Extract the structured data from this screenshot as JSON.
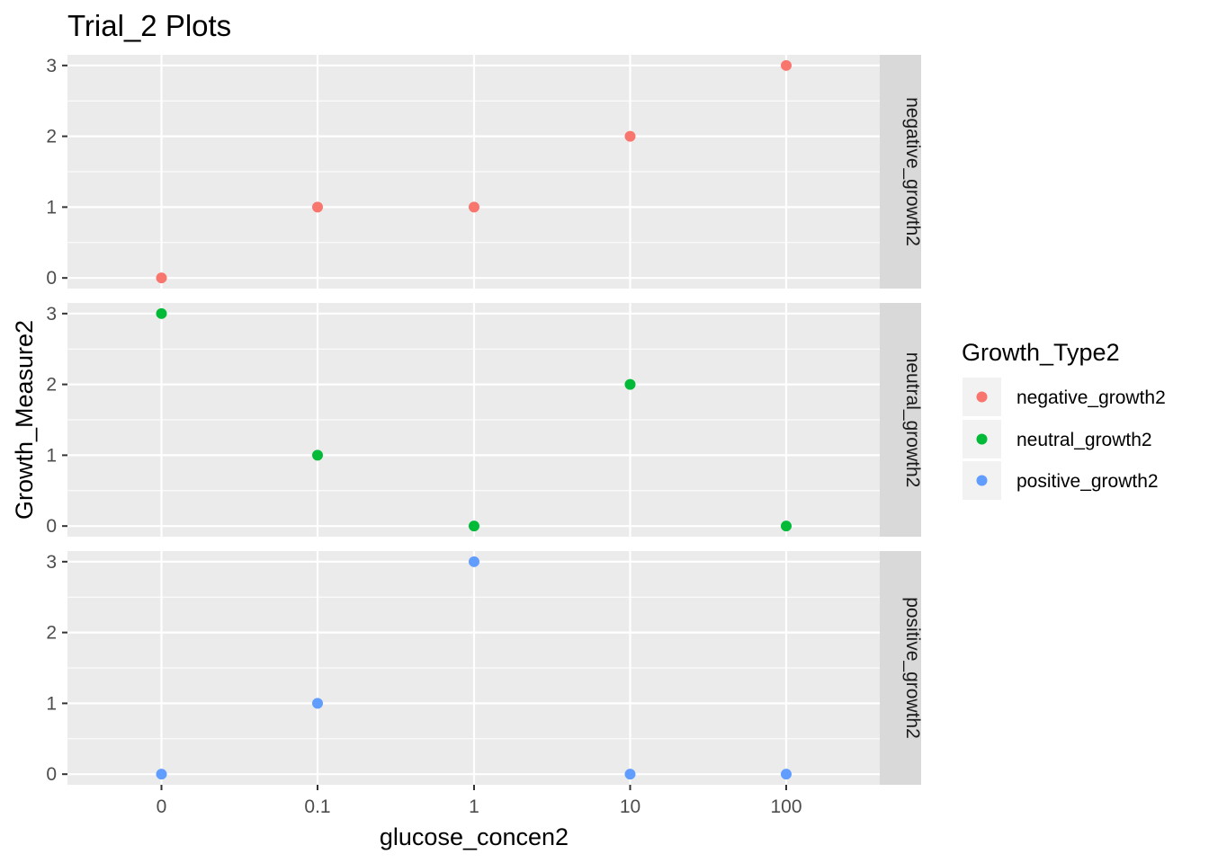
{
  "chart_data": {
    "type": "scatter",
    "title": "Trial_2 Plots",
    "xlabel": "glucose_concen2",
    "ylabel": "Growth_Measure2",
    "categories": [
      "0",
      "0.1",
      "1",
      "10",
      "100"
    ],
    "y_ticks": [
      "0",
      "1",
      "2",
      "3"
    ],
    "ylim": [
      -0.15,
      3.15
    ],
    "grid": true,
    "legend": {
      "title": "Growth_Type2",
      "placement": "right"
    },
    "series": [
      {
        "name": "negative_growth2",
        "color": "#F8766D",
        "x": [
          "0",
          "0.1",
          "1",
          "10",
          "100"
        ],
        "values": [
          0,
          1,
          1,
          2,
          3
        ]
      },
      {
        "name": "neutral_growth2",
        "color": "#00BA38",
        "x": [
          "0",
          "0.1",
          "1",
          "10",
          "100"
        ],
        "values": [
          3,
          1,
          0,
          2,
          0
        ]
      },
      {
        "name": "positive_growth2",
        "color": "#619CFF",
        "x": [
          "0",
          "0.1",
          "1",
          "10",
          "100"
        ],
        "values": [
          0,
          1,
          3,
          0,
          0
        ]
      }
    ]
  }
}
